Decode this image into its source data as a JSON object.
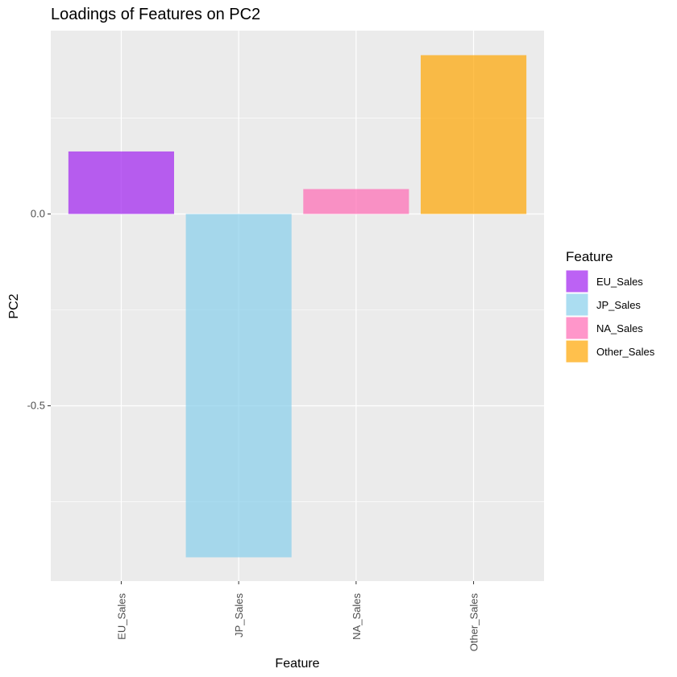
{
  "chart_data": {
    "type": "bar",
    "title": "Loadings of Features on PC2",
    "xlabel": "Feature",
    "ylabel": "PC2",
    "categories": [
      "EU_Sales",
      "JP_Sales",
      "NA_Sales",
      "Other_Sales"
    ],
    "values": [
      0.163,
      -0.895,
      0.065,
      0.414
    ],
    "colors": [
      "#a020f0",
      "#87ceeb",
      "#ff69b4",
      "#ffa500"
    ],
    "y_ticks": [
      0.0,
      -0.5
    ],
    "y_tick_labels": [
      "0.0",
      "-0.5"
    ],
    "ylim": [
      -0.957,
      0.478
    ],
    "grid": true,
    "legend": {
      "title": "Feature",
      "position": "right",
      "entries": [
        "EU_Sales",
        "JP_Sales",
        "NA_Sales",
        "Other_Sales"
      ]
    },
    "x_tick_rotation": "vertical"
  }
}
